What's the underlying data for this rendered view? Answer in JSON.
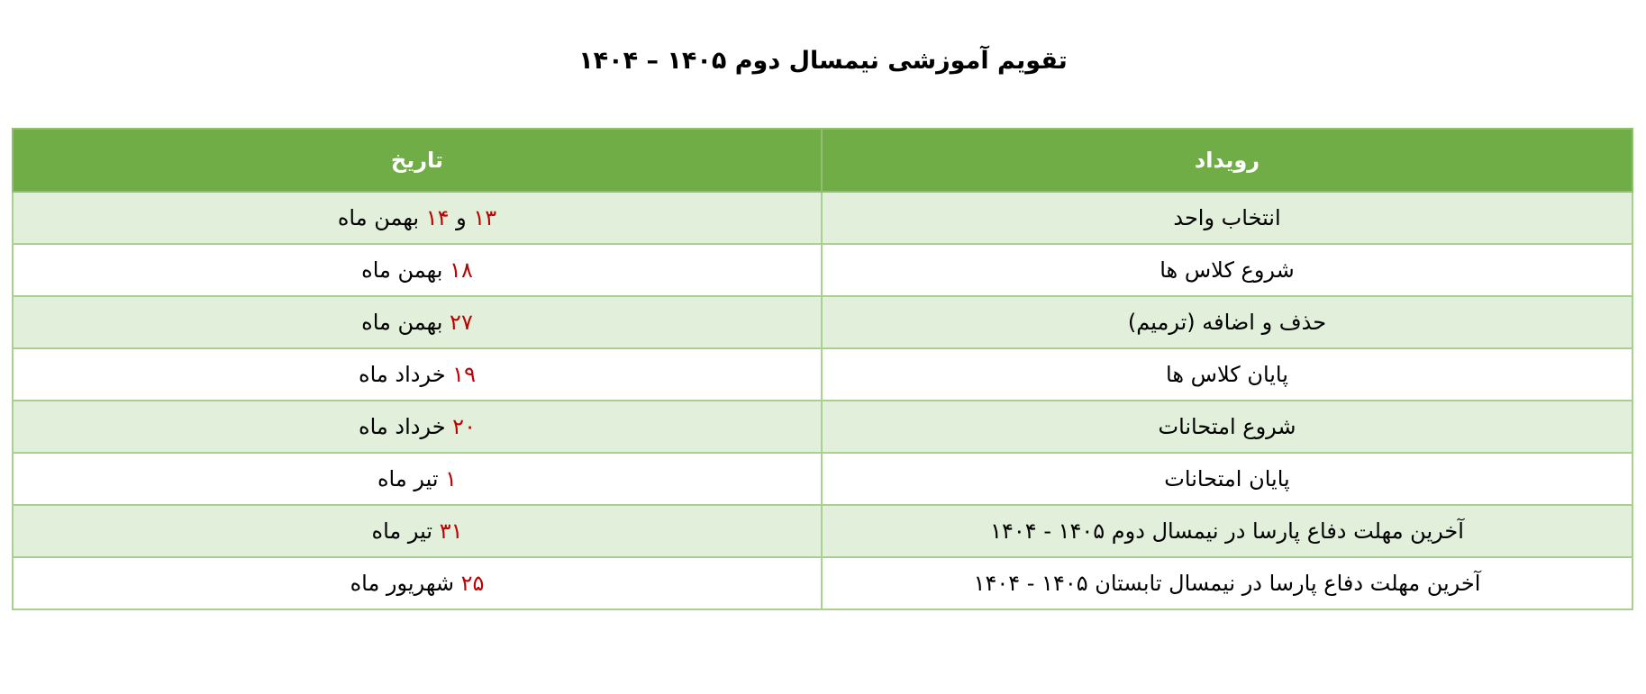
{
  "title": "تقویم آموزشی نیمسال دوم ۱۴۰۵ – ۱۴۰۴",
  "colors": {
    "header_bg": "#70ad47",
    "alt_row_bg": "#e2efda",
    "border": "#a9d08e",
    "date_number": "#c00000"
  },
  "table": {
    "headers": {
      "event": "رویداد",
      "date": "تاریخ"
    },
    "rows": [
      {
        "event": "انتخاب واحد",
        "date": {
          "n1": "۱۳",
          "mid": " و ",
          "n2": "۱۴",
          "rest": " بهمن ماه"
        }
      },
      {
        "event": "شروع کلاس ها",
        "date": {
          "n1": "۱۸",
          "rest": " بهمن ماه"
        }
      },
      {
        "event": "حذف و اضافه (ترمیم)",
        "date": {
          "n1": "۲۷",
          "rest": " بهمن ماه"
        }
      },
      {
        "event": "پایان کلاس ها",
        "date": {
          "n1": "۱۹",
          "rest": " خرداد ماه"
        }
      },
      {
        "event": "شروع امتحانات",
        "date": {
          "n1": "۲۰",
          "rest": " خرداد ماه"
        }
      },
      {
        "event": "پایان امتحانات",
        "date": {
          "n1": "۱",
          "rest": " تیر ماه"
        }
      },
      {
        "event": "آخرین مهلت دفاع پارسا در نیمسال دوم ۱۴۰۵ - ۱۴۰۴",
        "date": {
          "n1": "۳۱",
          "rest": " تیر ماه"
        }
      },
      {
        "event": "آخرین مهلت دفاع پارسا در نیمسال تابستان ۱۴۰۵ - ۱۴۰۴",
        "date": {
          "n1": "۲۵",
          "rest": " شهریور ماه"
        }
      }
    ]
  }
}
